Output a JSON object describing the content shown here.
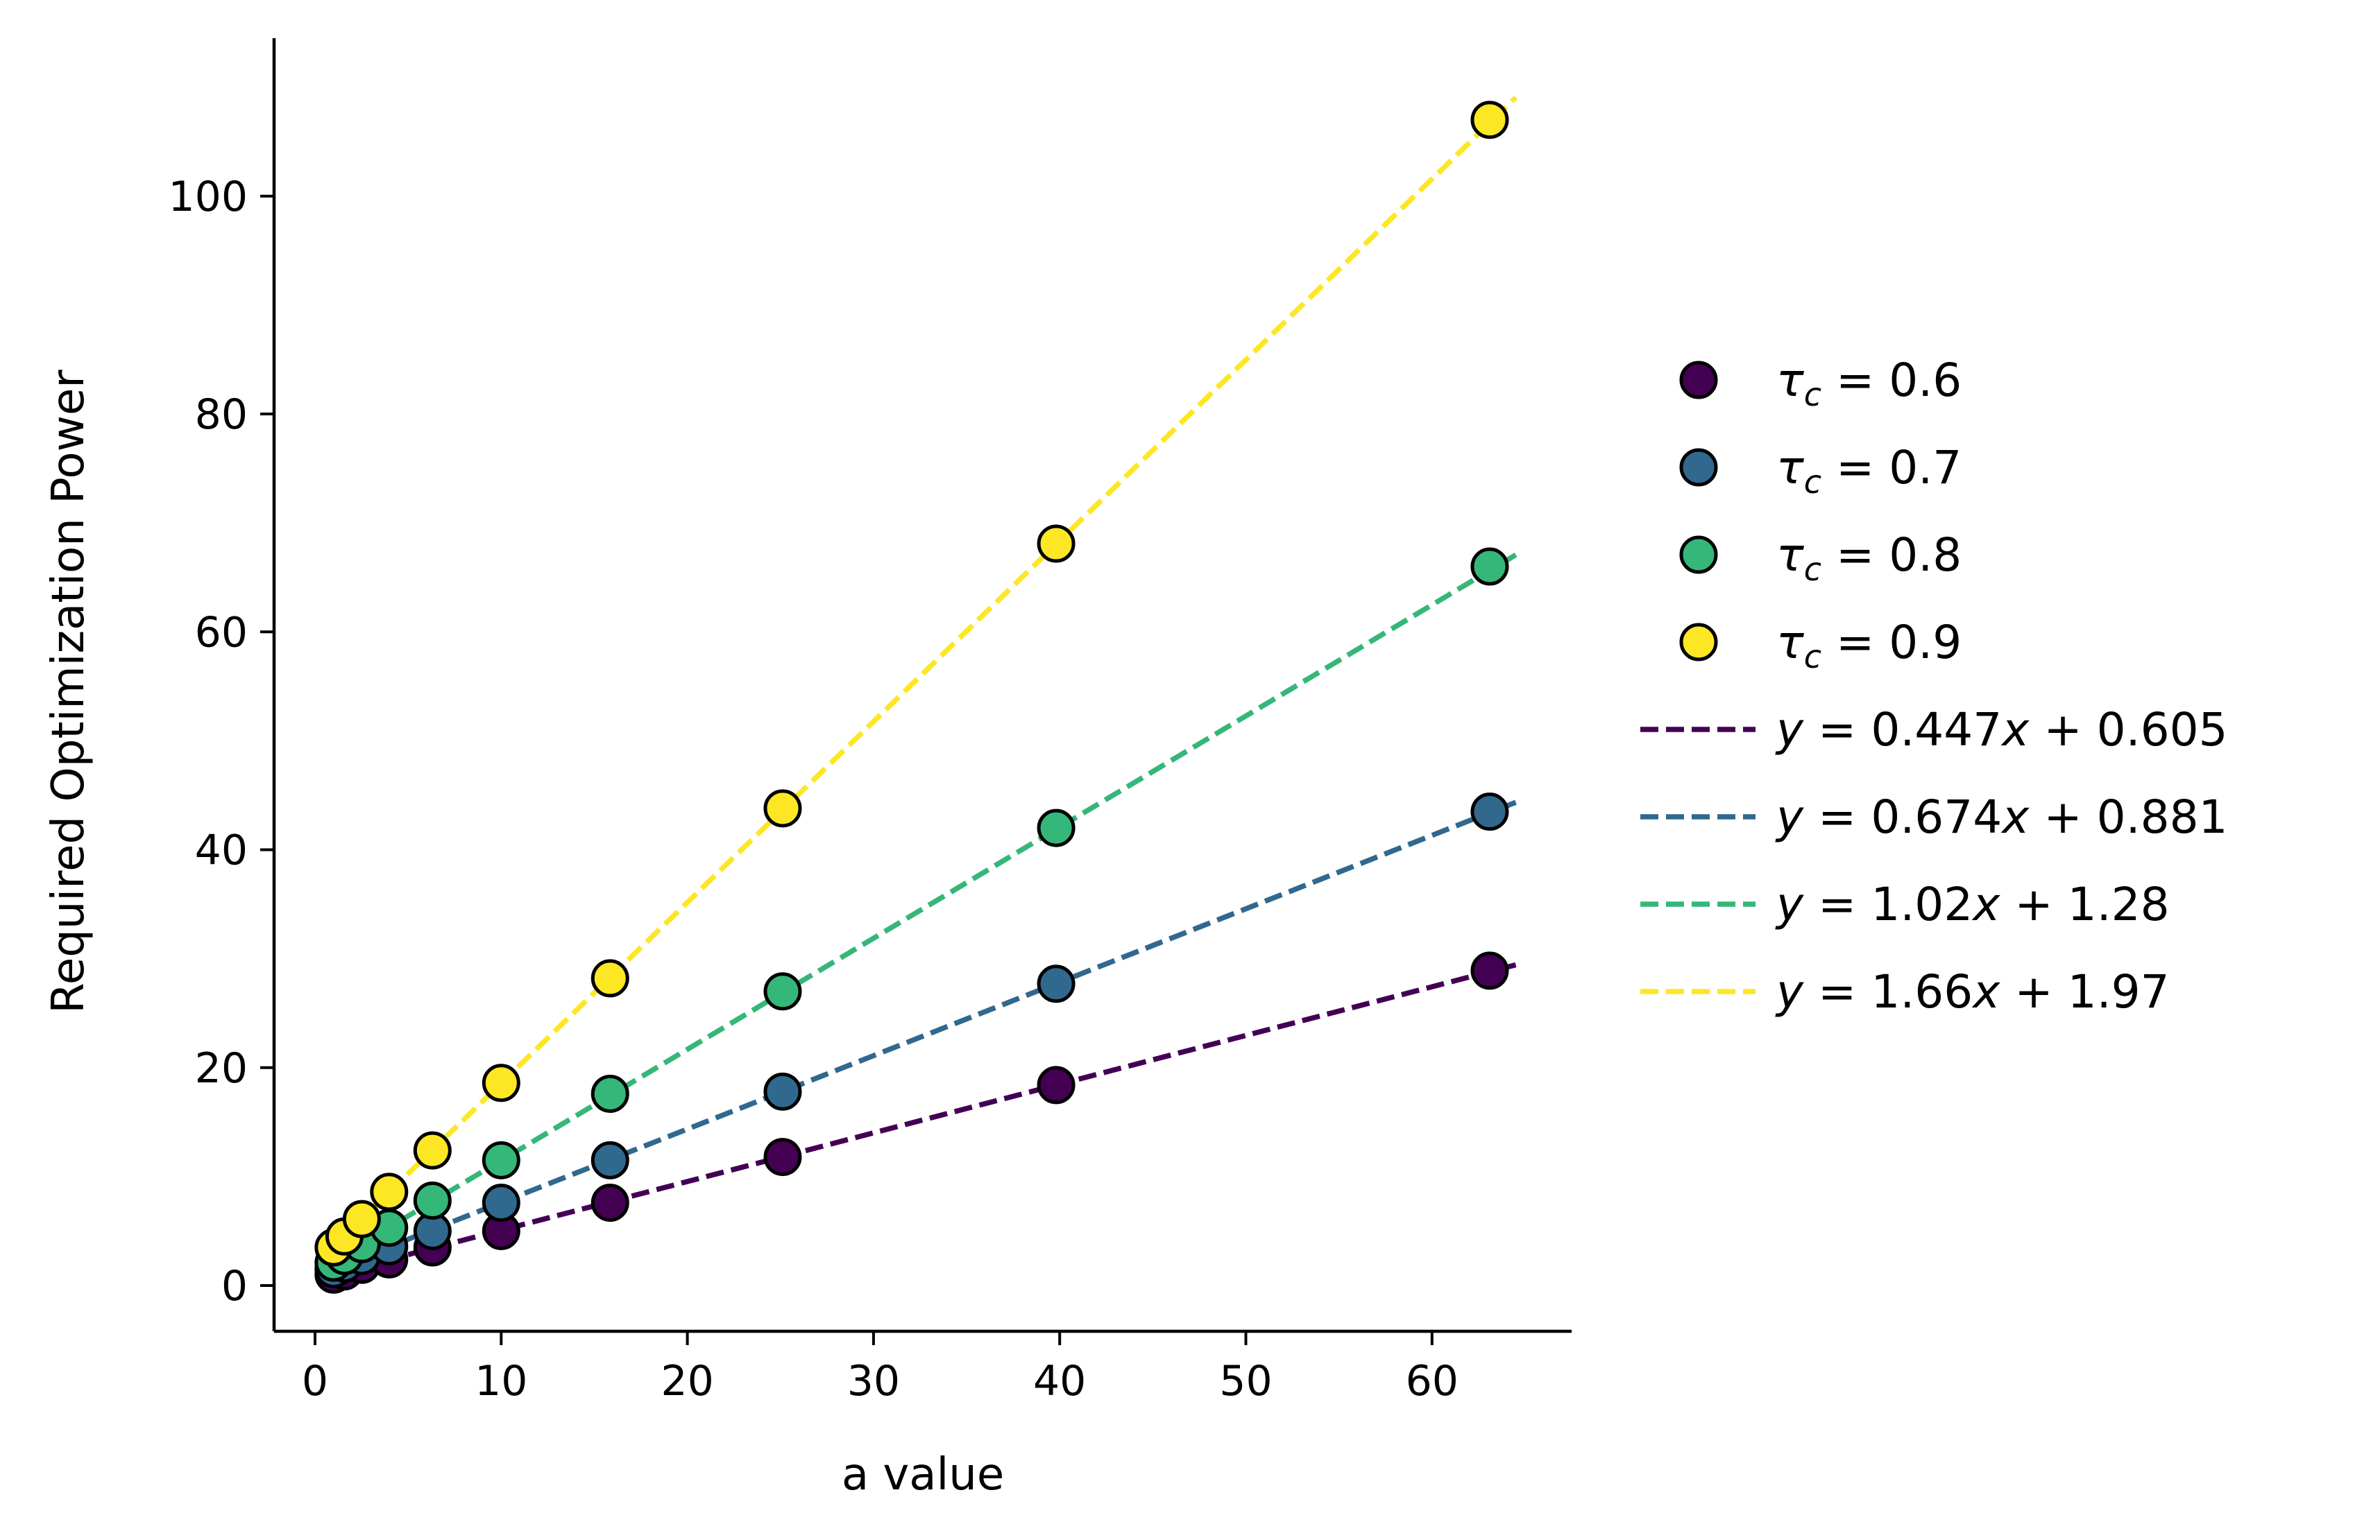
{
  "chart_data": {
    "type": "scatter",
    "title": "",
    "xlabel": "a value",
    "ylabel": "Required Optimization Power",
    "xlim": [
      -2.2,
      67.5
    ],
    "ylim": [
      -4.2,
      114.5
    ],
    "xticks": [
      0,
      10,
      20,
      30,
      40,
      50,
      60
    ],
    "yticks": [
      0,
      20,
      40,
      60,
      80,
      100
    ],
    "x": [
      1.0,
      1.58,
      2.51,
      3.98,
      6.31,
      10.0,
      15.85,
      25.12,
      39.81,
      63.1
    ],
    "legend_position": "right",
    "series": [
      {
        "name": "τc = 0.6",
        "tau": "0.6",
        "color": "#440154",
        "values": [
          1.0,
          1.3,
          1.9,
          2.4,
          3.5,
          5.0,
          7.6,
          11.8,
          18.4,
          28.9
        ],
        "fit": {
          "slope": 0.447,
          "intercept": 0.605,
          "label": "y = 0.447x + 0.605",
          "slope_text": "0.447",
          "intercept_text": "0.605"
        }
      },
      {
        "name": "τc = 0.7",
        "tau": "0.7",
        "color": "#31688e",
        "values": [
          1.5,
          2.0,
          2.7,
          3.6,
          5.0,
          7.6,
          11.5,
          17.8,
          27.7,
          43.5
        ],
        "fit": {
          "slope": 0.674,
          "intercept": 0.881,
          "label": "y = 0.674x + 0.881",
          "slope_text": "0.674",
          "intercept_text": "0.881"
        }
      },
      {
        "name": "τc = 0.8",
        "tau": "0.8",
        "color": "#35b779",
        "values": [
          2.1,
          2.7,
          3.8,
          5.3,
          7.8,
          11.5,
          17.6,
          27.0,
          42.0,
          66.0
        ],
        "fit": {
          "slope": 1.02,
          "intercept": 1.28,
          "label": "y = 1.02x + 1.28",
          "slope_text": "1.02",
          "intercept_text": "1.28"
        }
      },
      {
        "name": "τc = 0.9",
        "tau": "0.9",
        "color": "#fde725",
        "values": [
          3.5,
          4.5,
          6.1,
          8.6,
          12.4,
          18.6,
          28.2,
          43.8,
          68.1,
          107.0
        ],
        "fit": {
          "slope": 1.66,
          "intercept": 1.97,
          "label": "y = 1.66x + 1.97",
          "slope_text": "1.66",
          "intercept_text": "1.97"
        }
      }
    ]
  }
}
